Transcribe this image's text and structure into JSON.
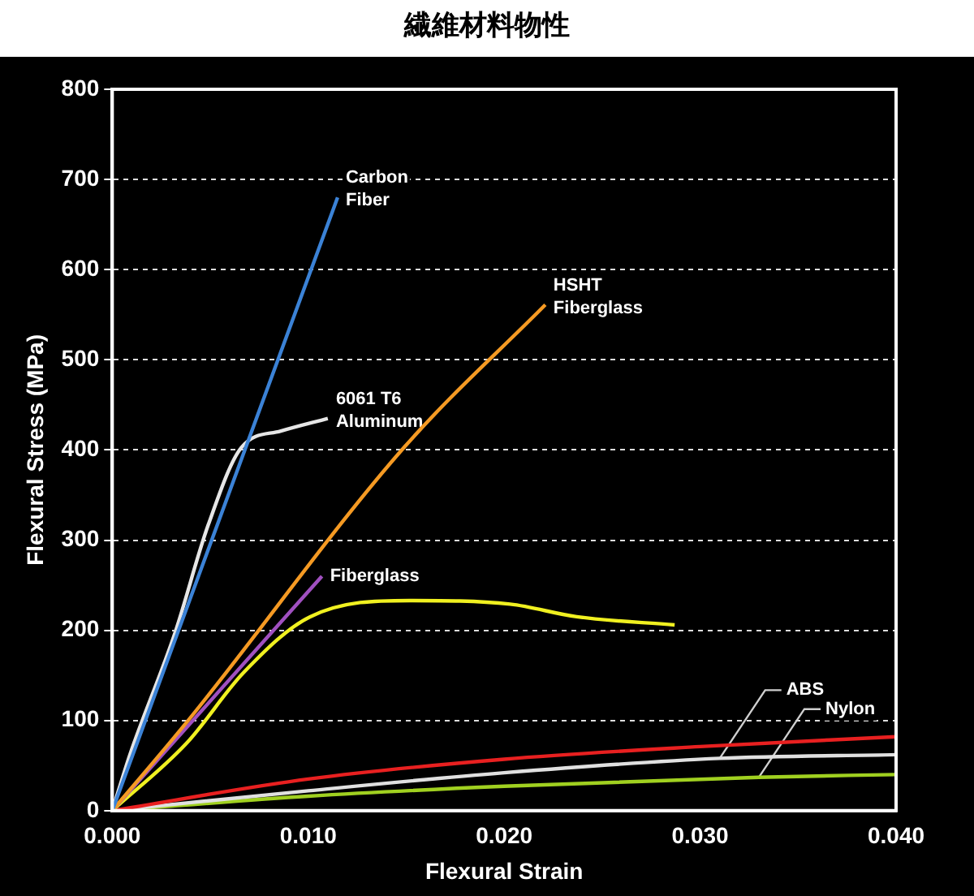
{
  "chart_data": {
    "type": "line",
    "title": "繊維材料物性",
    "xlabel": "Flexural Strain",
    "ylabel": "Flexural Stress (MPa)",
    "xlim": [
      0,
      0.04
    ],
    "xticks": [
      {
        "value": 0,
        "label": "0.000"
      },
      {
        "value": 0.01,
        "label": "0.010"
      },
      {
        "value": 0.02,
        "label": "0.020"
      },
      {
        "value": 0.03,
        "label": "0.030"
      },
      {
        "value": 0.04,
        "label": "0.040"
      }
    ],
    "ylim": [
      0,
      800
    ],
    "yticks": [
      0,
      100,
      200,
      300,
      400,
      500,
      600,
      700,
      800
    ],
    "grid": "y",
    "legend": false,
    "marker": "none",
    "line_style": "solid",
    "series": [
      {
        "name": "Carbon Fiber",
        "color": "#3b82d6",
        "x": [
          0,
          0.0115
        ],
        "values": [
          0,
          680
        ]
      },
      {
        "name": "6061 T6 Aluminum",
        "color": "#e6e6e6",
        "x": [
          0,
          0.0009,
          0.0032,
          0.0049,
          0.0066,
          0.0086,
          0.011
        ],
        "values": [
          0,
          62,
          197,
          317,
          403,
          421,
          435
        ]
      },
      {
        "name": "HSHT Fiberglass",
        "color": "#f59a23",
        "x": [
          0,
          0.0038,
          0.0149,
          0.0221
        ],
        "values": [
          0,
          98,
          403,
          561
        ]
      },
      {
        "name": "Fiberglass",
        "color": "#a050c0",
        "x": [
          0,
          0.0107
        ],
        "values": [
          0,
          260
        ]
      },
      {
        "color": "#f0f020",
        "x": [
          0,
          0.0038,
          0.0067,
          0.0101,
          0.0152,
          0.0203,
          0.0237,
          0.0287
        ],
        "values": [
          0,
          75,
          153,
          215,
          233,
          229,
          215,
          206
        ]
      },
      {
        "color": "#e82020",
        "x": [
          0,
          0.01,
          0.02,
          0.03,
          0.04
        ],
        "values": [
          0,
          35,
          57,
          71,
          82
        ]
      },
      {
        "name": "ABS",
        "color": "#e0e0e0",
        "x": [
          0,
          0.01,
          0.02,
          0.031,
          0.04
        ],
        "values": [
          0,
          22,
          42,
          58,
          62
        ]
      },
      {
        "name": "Nylon",
        "color": "#a0d020",
        "x": [
          0,
          0.01,
          0.02,
          0.033,
          0.04
        ],
        "values": [
          0,
          16,
          27,
          37,
          40
        ]
      }
    ]
  }
}
